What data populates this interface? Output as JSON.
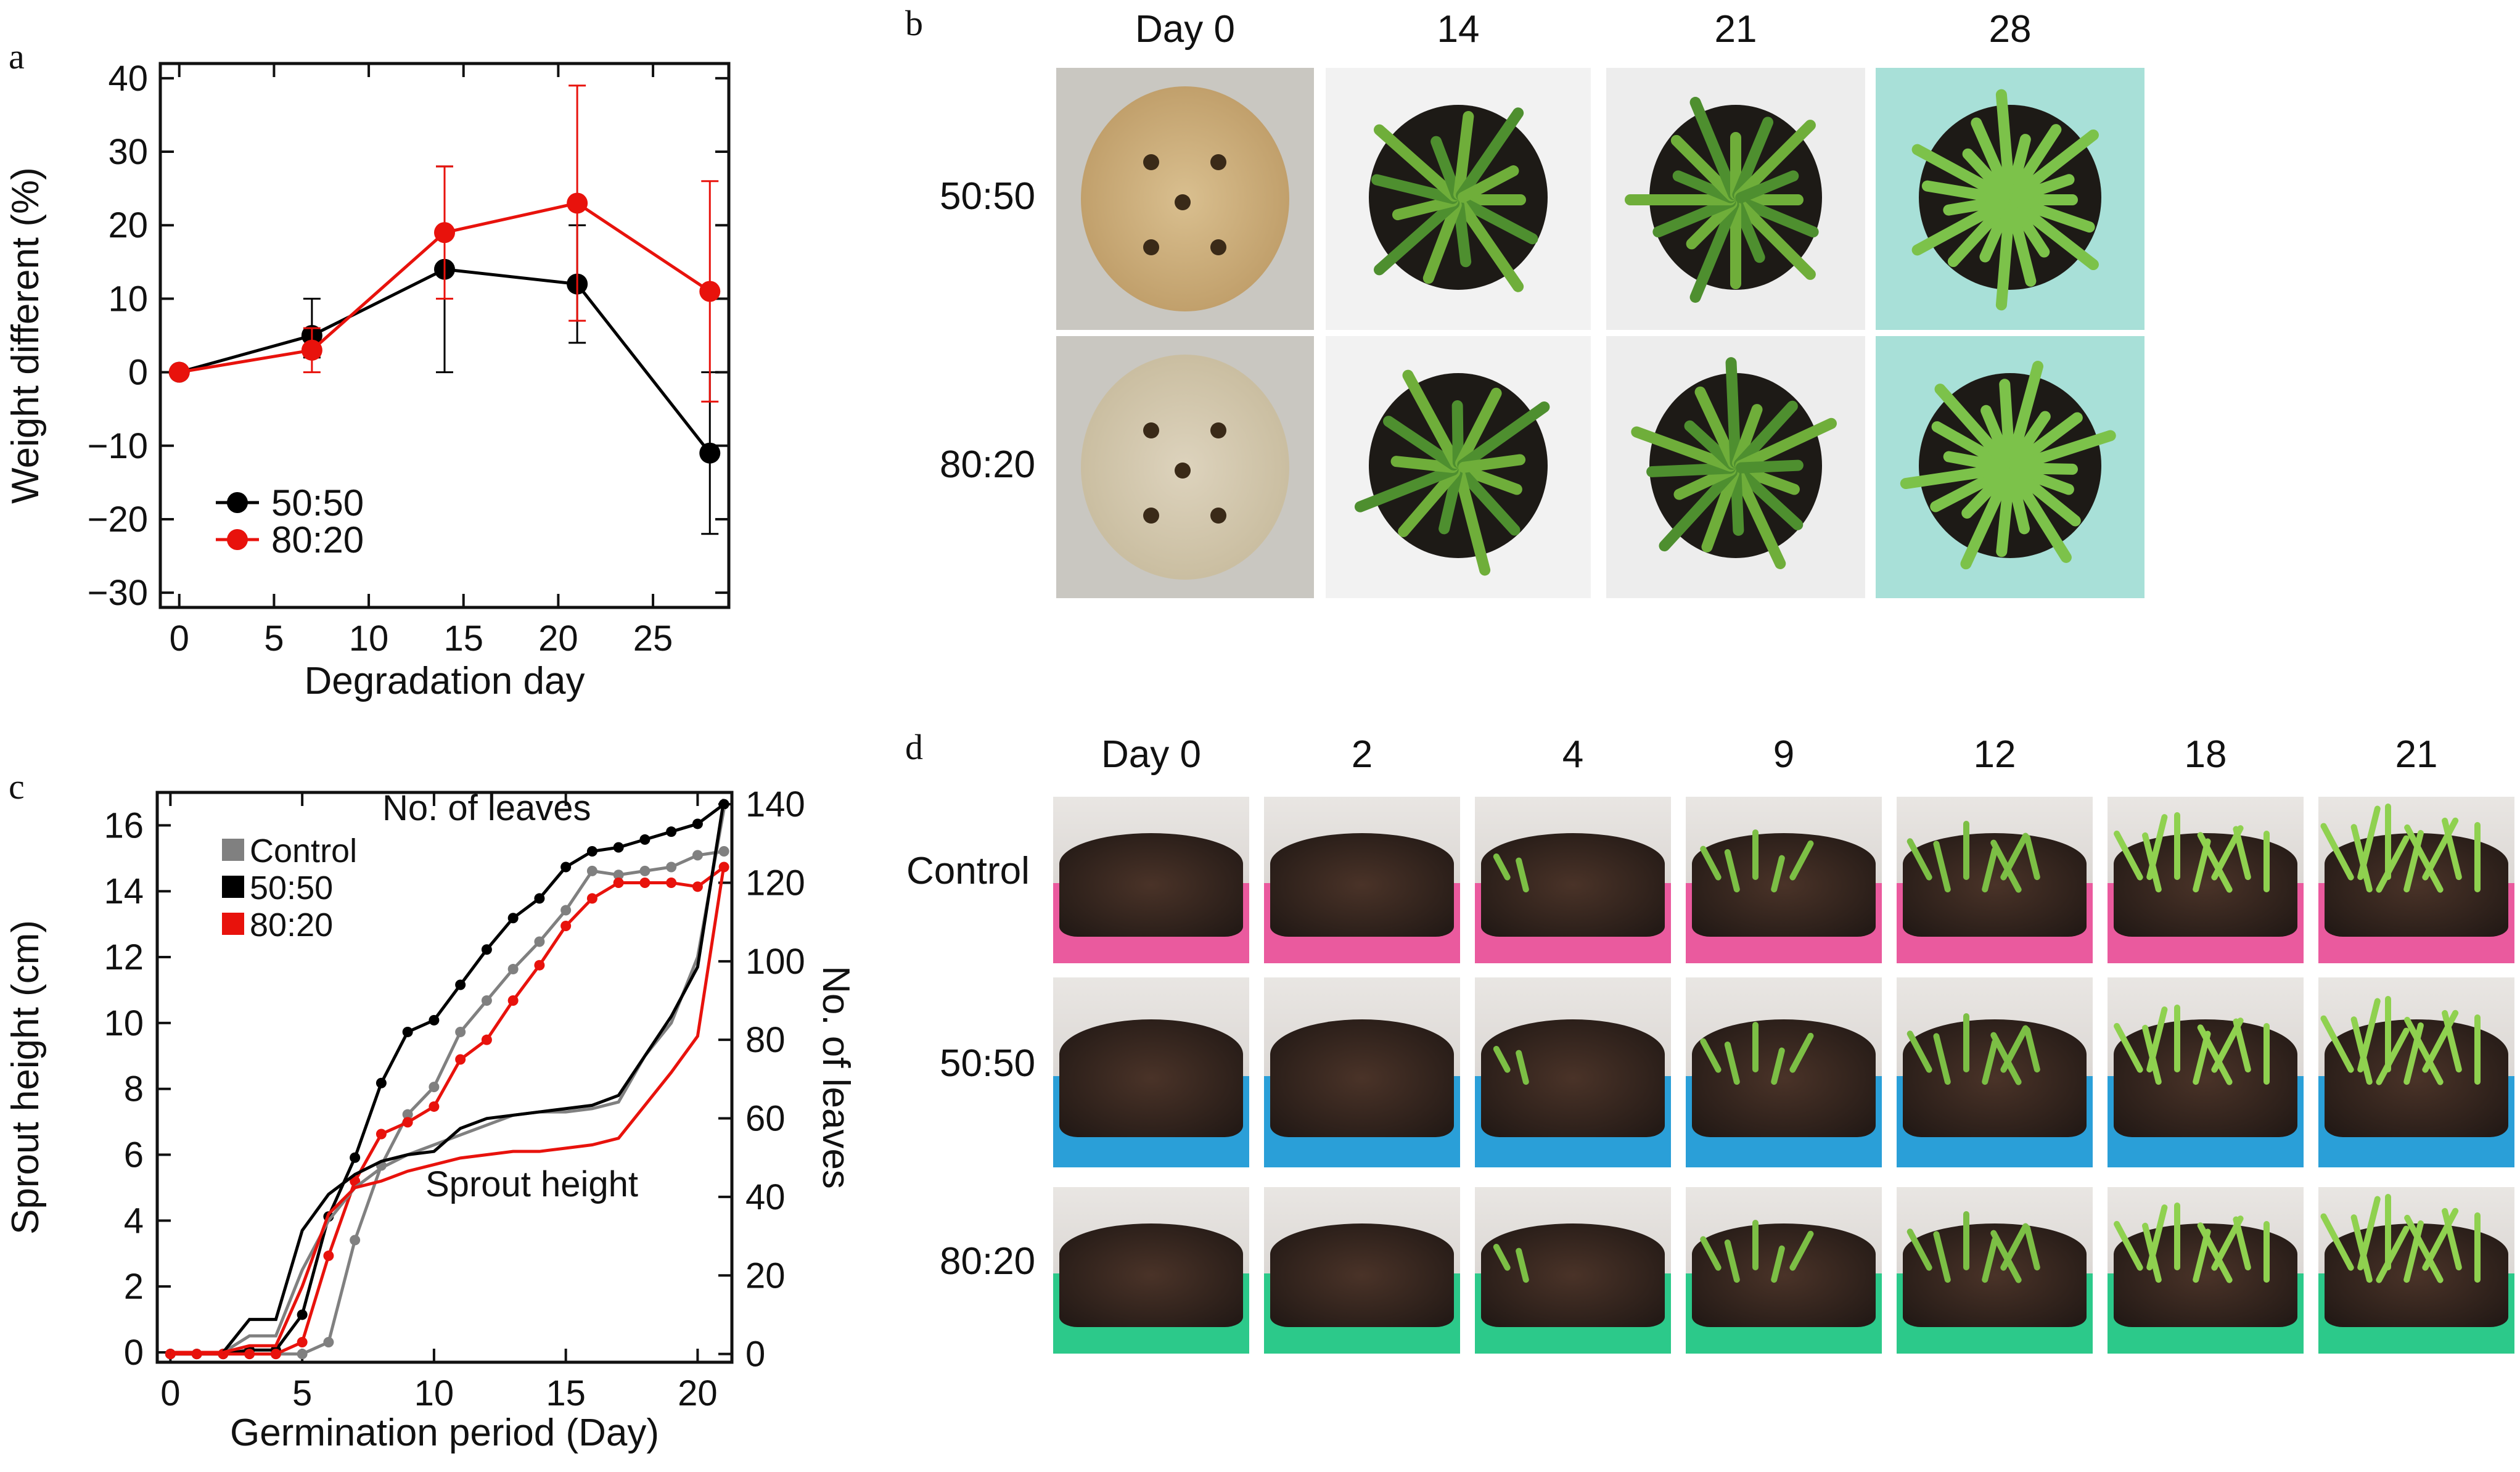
{
  "panels": {
    "a": "a",
    "b": "b",
    "c": "c",
    "d": "d"
  },
  "chart_data": [
    {
      "type": "line",
      "panel": "a",
      "xlabel": "Degradation day",
      "ylabel": "Weight different (%)",
      "xlim": [
        -1,
        29
      ],
      "ylim": [
        -32,
        42
      ],
      "xticks": [
        0,
        5,
        10,
        15,
        20,
        25
      ],
      "yticks": [
        -30,
        -20,
        -10,
        0,
        10,
        20,
        30,
        40
      ],
      "ytick_labels": [
        "−30",
        "−20",
        "−10",
        "0",
        "10",
        "20",
        "30",
        "40"
      ],
      "legend_position": "bottom-left",
      "series": [
        {
          "name": "50:50",
          "color": "#000000",
          "x": [
            0,
            7,
            14,
            21,
            28
          ],
          "y": [
            0,
            5,
            14,
            12,
            -11
          ],
          "err_low": [
            0,
            3,
            14,
            8,
            11
          ],
          "err_high": [
            0,
            5,
            14,
            8,
            11
          ]
        },
        {
          "name": "80:20",
          "color": "#e8120c",
          "x": [
            0,
            7,
            14,
            21,
            28
          ],
          "y": [
            0,
            3,
            19,
            23,
            11
          ],
          "err_low": [
            0,
            3,
            9,
            16,
            15
          ],
          "err_high": [
            0,
            3,
            9,
            16,
            15
          ]
        }
      ]
    },
    {
      "type": "line",
      "panel": "c",
      "xlabel": "Germination period (Day)",
      "ylabel": "Sprout height (cm)",
      "y2label": "No. of leaves",
      "xlim": [
        -0.5,
        21.3
      ],
      "ylim": [
        -0.3,
        17
      ],
      "y2lim": [
        -2.1,
        143
      ],
      "xticks": [
        0,
        5,
        10,
        15,
        20
      ],
      "yticks": [
        0,
        2,
        4,
        6,
        8,
        10,
        12,
        14,
        16
      ],
      "y2ticks": [
        0,
        20,
        40,
        60,
        80,
        100,
        120,
        140
      ],
      "annotations": [
        "No. of leaves",
        "Sprout height"
      ],
      "legend_position": "top-left",
      "series": [
        {
          "name": "Control",
          "color": "#808080",
          "measure": "leaves",
          "axis": "right",
          "marker": true,
          "x": [
            0,
            1,
            2,
            3,
            4,
            5,
            6,
            7,
            8,
            9,
            10,
            11,
            12,
            13,
            14,
            15,
            16,
            17,
            18,
            19,
            20,
            21
          ],
          "y": [
            0,
            0,
            0,
            0,
            0,
            0,
            3,
            29,
            48,
            61,
            68,
            82,
            90,
            98,
            105,
            113,
            123,
            122,
            123,
            124,
            127,
            128
          ]
        },
        {
          "name": "50:50",
          "color": "#000000",
          "measure": "leaves",
          "axis": "right",
          "marker": true,
          "x": [
            0,
            1,
            2,
            3,
            4,
            5,
            6,
            7,
            8,
            9,
            10,
            11,
            12,
            13,
            14,
            15,
            16,
            17,
            18,
            19,
            20,
            21
          ],
          "y": [
            0,
            0,
            0,
            1,
            1,
            10,
            35,
            50,
            69,
            82,
            85,
            94,
            103,
            111,
            116,
            124,
            128,
            129,
            131,
            133,
            135,
            140
          ]
        },
        {
          "name": "80:20",
          "color": "#e8120c",
          "measure": "leaves",
          "axis": "right",
          "marker": true,
          "x": [
            0,
            1,
            2,
            3,
            4,
            5,
            6,
            7,
            8,
            9,
            10,
            11,
            12,
            13,
            14,
            15,
            16,
            17,
            18,
            19,
            20,
            21
          ],
          "y": [
            0,
            0,
            0,
            0,
            0,
            3,
            25,
            44,
            56,
            59,
            63,
            75,
            80,
            90,
            99,
            109,
            116,
            120,
            120,
            120,
            119,
            124
          ]
        },
        {
          "name": "Control",
          "color": "#808080",
          "measure": "height",
          "axis": "left",
          "marker": false,
          "x": [
            0,
            1,
            2,
            3,
            4,
            5,
            6,
            7,
            8,
            9,
            10,
            11,
            12,
            13,
            14,
            15,
            16,
            17,
            18,
            19,
            20,
            21
          ],
          "y": [
            0,
            0,
            0,
            0.5,
            0.5,
            2.5,
            4.0,
            5.0,
            5.6,
            6.0,
            6.3,
            6.6,
            6.9,
            7.2,
            7.3,
            7.3,
            7.4,
            7.6,
            9.0,
            10.0,
            12.0,
            16.5
          ]
        },
        {
          "name": "50:50",
          "color": "#000000",
          "measure": "height",
          "axis": "left",
          "marker": false,
          "x": [
            0,
            1,
            2,
            3,
            4,
            5,
            6,
            7,
            8,
            9,
            10,
            11,
            12,
            13,
            14,
            15,
            16,
            17,
            18,
            19,
            20,
            21
          ],
          "y": [
            0,
            0,
            0,
            1.0,
            1.0,
            3.7,
            4.8,
            5.4,
            5.8,
            6.0,
            6.1,
            6.8,
            7.1,
            7.2,
            7.3,
            7.4,
            7.5,
            7.8,
            9.0,
            10.2,
            11.7,
            16.8
          ]
        },
        {
          "name": "80:20",
          "color": "#e8120c",
          "measure": "height",
          "axis": "left",
          "marker": false,
          "x": [
            0,
            1,
            2,
            3,
            4,
            5,
            6,
            7,
            8,
            9,
            10,
            11,
            12,
            13,
            14,
            15,
            16,
            17,
            18,
            19,
            20,
            21
          ],
          "y": [
            0,
            0,
            0,
            0.2,
            0.2,
            2.0,
            4.2,
            5.0,
            5.2,
            5.5,
            5.7,
            5.9,
            6.0,
            6.1,
            6.1,
            6.2,
            6.3,
            6.5,
            7.5,
            8.5,
            9.6,
            14.8
          ]
        }
      ]
    }
  ],
  "panel_b": {
    "columns": [
      "Day 0",
      "14",
      "21",
      "28"
    ],
    "rows": [
      "50:50",
      "80:20"
    ],
    "backgrounds": [
      "#c9c7c1",
      "#f2f2f2",
      "#ededed",
      "#a8e0d8"
    ]
  },
  "panel_d": {
    "columns": [
      "Day 0",
      "2",
      "4",
      "9",
      "12",
      "18",
      "21"
    ],
    "rows": [
      "Control",
      "50:50",
      "80:20"
    ],
    "pot_colors": [
      "#ea5a9e",
      "#2a9fd8",
      "#2cc98a"
    ]
  }
}
